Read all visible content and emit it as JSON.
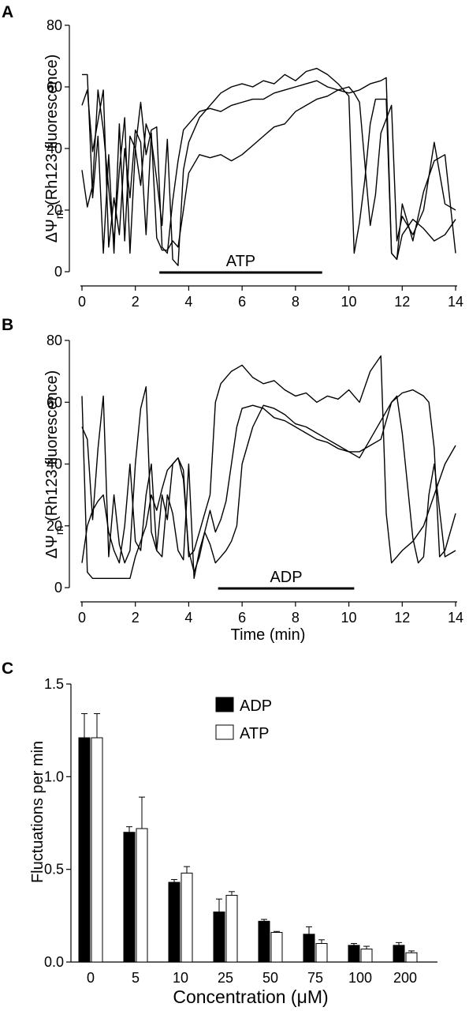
{
  "chart_data": [
    {
      "panel": "A",
      "type": "line",
      "ylabel_symbol": "ΔΨ",
      "ylabel_subscript": "m",
      "ylabel_rest": " (Rh123 fluorescence)",
      "xlabel": "",
      "xlim": [
        0,
        14
      ],
      "ylim": [
        0,
        80
      ],
      "xticks": [
        0,
        2,
        4,
        6,
        8,
        10,
        12,
        14
      ],
      "yticks": [
        0,
        20,
        40,
        60,
        80
      ],
      "bar_label": "ATP",
      "bar_range": [
        2.9,
        9.0
      ],
      "series": [
        {
          "x": [
            0.0,
            0.2,
            0.4,
            0.6,
            0.8,
            1.0,
            1.2,
            1.4,
            1.6,
            1.8,
            2.0,
            2.2,
            2.4,
            2.6,
            2.8,
            3.0,
            3.2,
            3.4,
            3.6,
            3.8,
            4.0,
            4.4,
            4.8,
            5.2,
            5.6,
            6.0,
            6.4,
            6.8,
            7.2,
            7.6,
            8.0,
            8.4,
            8.8,
            9.2,
            9.6,
            10.0,
            10.4,
            10.8,
            11.2,
            11.4,
            11.6,
            11.8,
            12.0,
            12.4,
            12.8,
            13.2,
            13.6,
            14.0
          ],
          "y": [
            64,
            64,
            24,
            44,
            6,
            38,
            6,
            48,
            10,
            44,
            40,
            55,
            38,
            46,
            47,
            8,
            6,
            23,
            36,
            46,
            48,
            52,
            53,
            52,
            54,
            55,
            56,
            56,
            58,
            59,
            60,
            61,
            62,
            60,
            59,
            58,
            59,
            61,
            62,
            63,
            6,
            4,
            12,
            17,
            14,
            10,
            12,
            17
          ]
        },
        {
          "x": [
            0.0,
            0.2,
            0.4,
            0.6,
            0.8,
            1.0,
            1.2,
            1.4,
            1.6,
            1.8,
            2.0,
            2.2,
            2.4,
            2.6,
            2.8,
            3.0,
            3.2,
            3.4,
            3.6,
            3.8,
            4.0,
            4.4,
            4.8,
            5.2,
            5.6,
            6.0,
            6.4,
            6.8,
            7.2,
            7.6,
            8.0,
            8.4,
            8.8,
            9.2,
            9.6,
            10.0,
            10.2,
            10.4,
            10.6,
            10.8,
            11.0,
            11.4,
            11.6,
            11.8,
            12.0,
            12.4,
            12.8,
            13.2,
            13.6,
            14.0
          ],
          "y": [
            33,
            21,
            28,
            59,
            46,
            27,
            10,
            33,
            50,
            6,
            40,
            28,
            48,
            43,
            30,
            15,
            43,
            4,
            2,
            33,
            42,
            50,
            54,
            58,
            60,
            61,
            60,
            62,
            61,
            64,
            62,
            65,
            66,
            64,
            61,
            57,
            6,
            16,
            30,
            48,
            56,
            56,
            6,
            4,
            22,
            10,
            26,
            36,
            38,
            6
          ]
        },
        {
          "x": [
            0.0,
            0.2,
            0.4,
            0.6,
            0.8,
            1.0,
            1.2,
            1.4,
            1.6,
            1.8,
            2.0,
            2.2,
            2.4,
            2.6,
            2.8,
            3.0,
            3.2,
            3.4,
            3.6,
            3.8,
            4.0,
            4.4,
            4.8,
            5.2,
            5.6,
            6.0,
            6.4,
            6.8,
            7.2,
            7.6,
            8.0,
            8.4,
            8.8,
            9.2,
            9.6,
            10.0,
            10.2,
            10.4,
            10.6,
            10.8,
            11.0,
            11.2,
            11.6,
            11.8,
            12.0,
            12.4,
            12.8,
            13.2,
            13.6,
            14.0
          ],
          "y": [
            54,
            59,
            39,
            49,
            59,
            8,
            24,
            12,
            40,
            24,
            46,
            42,
            12,
            45,
            11,
            7,
            7,
            10,
            8,
            20,
            32,
            38,
            37,
            38,
            36,
            38,
            41,
            44,
            47,
            48,
            52,
            54,
            56,
            57,
            59,
            60,
            58,
            55,
            35,
            15,
            25,
            45,
            54,
            10,
            18,
            12,
            20,
            42,
            22,
            20
          ]
        }
      ]
    },
    {
      "panel": "B",
      "type": "line",
      "ylabel_symbol": "ΔΨ",
      "ylabel_subscript": "m",
      "ylabel_rest": " (Rh123 fluorescence)",
      "xlabel": "Time (min)",
      "xlim": [
        0,
        14
      ],
      "ylim": [
        0,
        80
      ],
      "xticks": [
        0,
        2,
        4,
        6,
        8,
        10,
        12,
        14
      ],
      "yticks": [
        0,
        20,
        40,
        60,
        80
      ],
      "bar_label": "ADP",
      "bar_range": [
        5.1,
        10.2
      ],
      "series": [
        {
          "x": [
            0.0,
            0.2,
            0.4,
            0.6,
            0.8,
            1.0,
            1.2,
            1.4,
            1.6,
            1.8,
            2.0,
            2.2,
            2.4,
            2.6,
            2.8,
            3.0,
            3.2,
            3.4,
            3.6,
            3.8,
            4.0,
            4.2,
            4.4,
            4.6,
            4.8,
            5.0,
            5.2,
            5.4,
            5.6,
            5.8,
            6.0,
            6.4,
            6.8,
            7.2,
            7.6,
            8.0,
            8.4,
            8.8,
            9.2,
            9.6,
            10.0,
            10.4,
            10.8,
            11.2,
            11.4,
            11.6,
            11.8,
            12.0,
            12.4,
            12.8,
            13.2,
            13.6,
            14.0
          ],
          "y": [
            62,
            5,
            3,
            3,
            3,
            3,
            3,
            3,
            3,
            3,
            10,
            15,
            20,
            30,
            25,
            32,
            38,
            40,
            42,
            38,
            10,
            12,
            18,
            24,
            30,
            60,
            66,
            68,
            70,
            71,
            72,
            68,
            66,
            67,
            64,
            62,
            63,
            60,
            62,
            61,
            64,
            60,
            70,
            75,
            24,
            8,
            10,
            12,
            15,
            20,
            30,
            40,
            46
          ]
        },
        {
          "x": [
            0.0,
            0.2,
            0.4,
            0.6,
            0.8,
            1.0,
            1.2,
            1.4,
            1.6,
            1.8,
            2.0,
            2.2,
            2.4,
            2.6,
            2.8,
            3.0,
            3.2,
            3.4,
            3.6,
            3.8,
            4.0,
            4.2,
            4.4,
            4.6,
            4.8,
            5.0,
            5.2,
            5.4,
            5.6,
            5.8,
            6.0,
            6.4,
            6.8,
            7.2,
            7.6,
            8.0,
            8.4,
            8.8,
            9.2,
            9.6,
            10.0,
            10.4,
            10.8,
            11.2,
            11.6,
            12.0,
            12.4,
            12.8,
            13.0,
            13.2,
            13.4,
            13.6,
            14.0
          ],
          "y": [
            52,
            48,
            22,
            45,
            62,
            10,
            30,
            14,
            8,
            12,
            40,
            58,
            65,
            18,
            12,
            10,
            30,
            24,
            12,
            9,
            40,
            3,
            12,
            18,
            25,
            18,
            22,
            28,
            40,
            52,
            58,
            59,
            58,
            55,
            54,
            52,
            50,
            48,
            47,
            45,
            44,
            44,
            46,
            48,
            60,
            63,
            64,
            62,
            60,
            45,
            10,
            12,
            24
          ]
        },
        {
          "x": [
            0.0,
            0.2,
            0.4,
            0.6,
            0.8,
            1.0,
            1.2,
            1.4,
            1.6,
            1.8,
            2.0,
            2.2,
            2.4,
            2.6,
            2.8,
            3.0,
            3.2,
            3.4,
            3.6,
            3.8,
            4.0,
            4.2,
            4.4,
            4.6,
            4.8,
            5.0,
            5.2,
            5.4,
            5.6,
            5.8,
            6.0,
            6.4,
            6.8,
            7.2,
            7.6,
            8.0,
            8.4,
            8.8,
            9.2,
            9.6,
            10.0,
            10.4,
            10.8,
            11.2,
            11.6,
            11.8,
            12.0,
            12.4,
            12.6,
            12.8,
            13.0,
            13.2,
            13.6,
            14.0
          ],
          "y": [
            8,
            20,
            25,
            28,
            30,
            18,
            12,
            8,
            20,
            40,
            15,
            12,
            30,
            40,
            12,
            30,
            22,
            40,
            42,
            35,
            12,
            5,
            10,
            18,
            14,
            8,
            10,
            12,
            15,
            20,
            40,
            52,
            59,
            58,
            56,
            53,
            52,
            50,
            48,
            46,
            44,
            42,
            48,
            54,
            60,
            62,
            50,
            16,
            8,
            10,
            30,
            40,
            10,
            12
          ]
        }
      ]
    },
    {
      "panel": "C",
      "type": "bar",
      "xlabel_prefix": "Concentration (",
      "xlabel_unit": "μ",
      "xlabel_suffix": "M)",
      "ylabel": "Fluctuations per min",
      "ylim": [
        0,
        1.5
      ],
      "yticks": [
        "0.0",
        "0.5",
        "1.0",
        "1.5"
      ],
      "categories": [
        "0",
        "5",
        "10",
        "25",
        "50",
        "75",
        "100",
        "200"
      ],
      "legend_position": "top-right",
      "series": [
        {
          "name": "ADP",
          "color": "#000000",
          "values": [
            1.21,
            0.7,
            0.43,
            0.27,
            0.22,
            0.15,
            0.09,
            0.09
          ],
          "errors": [
            0.13,
            0.03,
            0.015,
            0.07,
            0.01,
            0.04,
            0.01,
            0.015
          ]
        },
        {
          "name": "ATP",
          "color": "#ffffff",
          "values": [
            1.21,
            0.72,
            0.48,
            0.36,
            0.16,
            0.1,
            0.07,
            0.05
          ],
          "errors": [
            0.13,
            0.17,
            0.035,
            0.02,
            0.005,
            0.02,
            0.015,
            0.01
          ]
        }
      ]
    }
  ]
}
